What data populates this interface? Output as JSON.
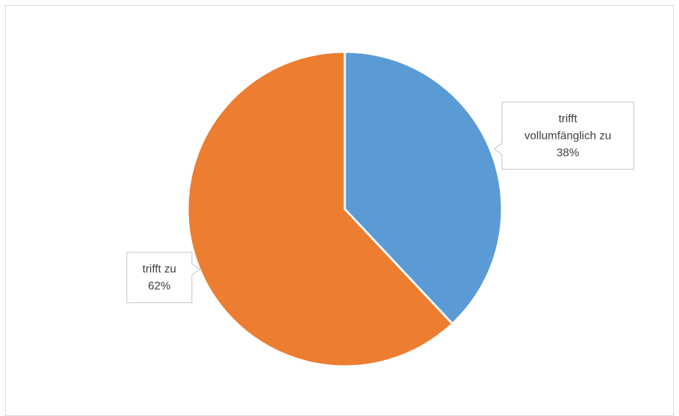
{
  "chart_data": {
    "type": "pie",
    "title": "",
    "start_angle_deg": 0,
    "direction": "clockwise",
    "slices": [
      {
        "label": "trifft vollumfänglich zu",
        "label_lines": [
          "trifft",
          "vollumfänglich zu"
        ],
        "value": 38,
        "percent_label": "38%",
        "color": "#5b9bd5"
      },
      {
        "label": "trifft zu",
        "label_lines": [
          "trifft zu"
        ],
        "value": 62,
        "percent_label": "62%",
        "color": "#ed7d31"
      }
    ],
    "legend": "none",
    "data_labels": "callout"
  }
}
